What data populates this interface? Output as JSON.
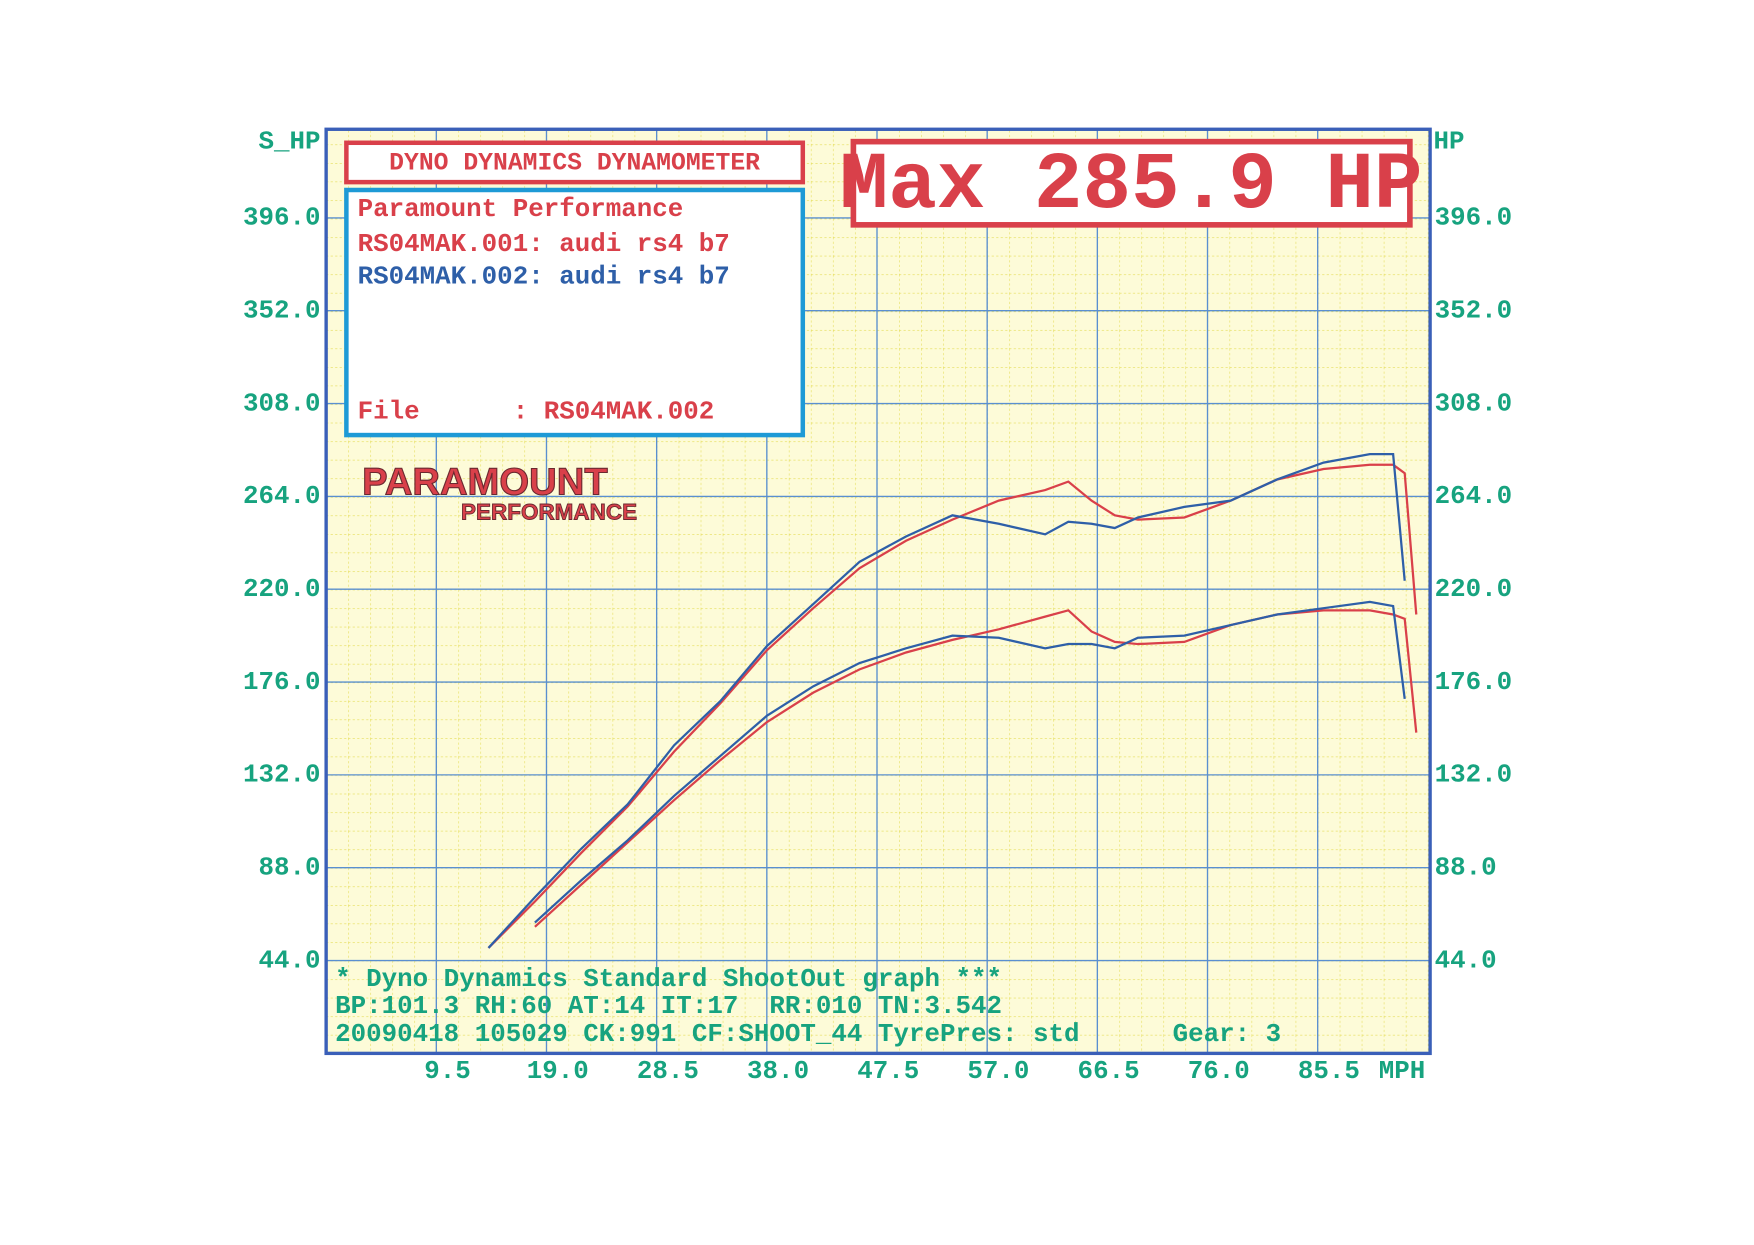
{
  "chart_data": {
    "type": "line",
    "title": "DYNO DYNAMICS DYNAMOMETER",
    "headline": "Max 285.9 HP",
    "legend_title": "Paramount Performance",
    "file_line": "File      : RS04MAK.002",
    "logo": {
      "name": "PARAMOUNT",
      "sub": "PERFORMANCE"
    },
    "ylabel": "S_HP",
    "y2label": "HP",
    "xlabel": "MPH",
    "footer": [
      "* Dyno Dynamics Standard ShootOut graph ***",
      "BP:101.3 RH:60 AT:14 IT:17  RR:010 TN:3.542",
      "20090418 105029 CK:991 CF:SHOOT_44 TyrePres: std      Gear: 3"
    ],
    "x": [
      14,
      18,
      22,
      26,
      30,
      34,
      38,
      42,
      46,
      50,
      54,
      58,
      62,
      64,
      66,
      68,
      70,
      74,
      78,
      82,
      86,
      90,
      92,
      93,
      94
    ],
    "series": [
      {
        "name": "RS04MAK.001: audi rs4 b7",
        "color": "#d9404a",
        "values": [
          50,
          72,
          95,
          117,
          143,
          166,
          191,
          211,
          230,
          243,
          253,
          262,
          267,
          271,
          262,
          255,
          253,
          254,
          262,
          272,
          277,
          279,
          279,
          275,
          208
        ],
        "values_lower": [
          null,
          60,
          80,
          100,
          120,
          139,
          157,
          171,
          182,
          190,
          196,
          201,
          207,
          210,
          200,
          195,
          194,
          195,
          203,
          208,
          210,
          210,
          208,
          206,
          152
        ]
      },
      {
        "name": "RS04MAK.002: audi rs4 b7",
        "color": "#2e5fa8",
        "values": [
          50,
          74,
          97,
          118,
          146,
          167,
          193,
          213,
          233,
          245,
          255,
          251,
          246,
          252,
          251,
          249,
          254,
          259,
          262,
          272,
          280,
          284,
          284,
          224,
          null
        ],
        "values_lower": [
          null,
          62,
          82,
          101,
          122,
          141,
          160,
          174,
          185,
          192,
          198,
          197,
          192,
          194,
          194,
          192,
          197,
          198,
          203,
          208,
          211,
          214,
          212,
          168,
          null
        ]
      }
    ],
    "xlim": [
      0,
      95
    ],
    "xticks": [
      9.5,
      {
        "value": 19,
        "label": "19.0"
      },
      28.5,
      {
        "value": 38,
        "label": "38.0"
      },
      47.5,
      {
        "value": 57,
        "label": "57.0"
      },
      66.5,
      {
        "value": 76,
        "label": "76.0"
      },
      85.5
    ],
    "ylim": [
      0,
      438
    ],
    "yticks": [
      {
        "value": 44,
        "label": "44.0"
      },
      {
        "value": 88,
        "label": "88.0"
      },
      {
        "value": 132,
        "label": "132.0"
      },
      {
        "value": 176,
        "label": "176.0"
      },
      {
        "value": 220,
        "label": "220.0"
      },
      {
        "value": 264,
        "label": "264.0"
      },
      {
        "value": 308,
        "label": "308.0"
      },
      {
        "value": 352,
        "label": "352.0"
      },
      {
        "value": 396,
        "label": "396.0"
      }
    ],
    "y2lim": [
      0,
      438
    ],
    "y2ticks": [
      {
        "value": 44,
        "label": "44.0"
      },
      {
        "value": 88,
        "label": "88.0"
      },
      {
        "value": 132,
        "label": "132.0"
      },
      {
        "value": 176,
        "label": "176.0"
      },
      {
        "value": 220,
        "label": "220.0"
      },
      {
        "value": 264,
        "label": "264.0"
      },
      {
        "value": 308,
        "label": "308.0"
      },
      {
        "value": 352,
        "label": "352.0"
      },
      {
        "value": 396,
        "label": "396.0"
      }
    ],
    "grid": true
  }
}
